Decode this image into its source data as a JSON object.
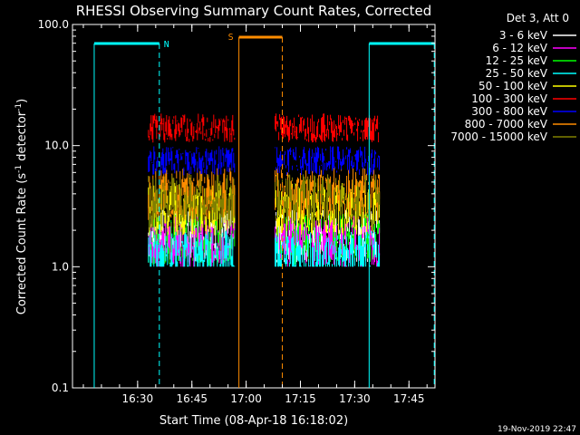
{
  "chart_data": {
    "type": "line",
    "title": "RHESSI Observing Summary Count Rates, Corrected",
    "xlabel": "Start Time (08-Apr-18 16:18:02)",
    "ylabel_main": "Corrected Count Rate (s",
    "ylabel_sup1": "-1",
    "ylabel_mid": " detector",
    "ylabel_sup2": "-1",
    "ylabel_end": ")",
    "yscale": "log",
    "ylim": [
      0.1,
      100
    ],
    "xlim_minutes": [
      16.2,
      17.87
    ],
    "x_ticks": [
      "16:30",
      "16:45",
      "17:00",
      "17:15",
      "17:30",
      "17:45"
    ],
    "y_ticks": [
      "0.1",
      "1.0",
      "10.0",
      "100.0"
    ],
    "y_tick_values": [
      0.1,
      1,
      10,
      100
    ],
    "x_tick_values": [
      16.5,
      16.75,
      17.0,
      17.25,
      17.5,
      17.75
    ],
    "legend_title": "Det 3, Att 0",
    "series": [
      {
        "name": "3 - 6 keV",
        "color": "#ffffff",
        "level": 1.8
      },
      {
        "name": "6 - 12 keV",
        "color": "#ff00ff",
        "level": 1.6
      },
      {
        "name": "12 - 25 keV",
        "color": "#00ff00",
        "level": 1.7
      },
      {
        "name": "25 - 50 keV",
        "color": "#00ffff",
        "level": 1.2
      },
      {
        "name": "50 - 100 keV",
        "color": "#ffff00",
        "level": 3.0
      },
      {
        "name": "100 - 300 keV",
        "color": "#ff0000",
        "level": 14.0
      },
      {
        "name": "300 - 800 keV",
        "color": "#0000ff",
        "level": 7.5
      },
      {
        "name": "800 - 7000 keV",
        "color": "#ff8c00",
        "level": 4.0
      },
      {
        "name": "7000 - 15000 keV",
        "color": "#808000",
        "level": 3.5
      }
    ],
    "data_segments": [
      {
        "start": "16:33",
        "end": "16:57"
      },
      {
        "start": "17:08",
        "end": "17:37"
      }
    ],
    "night_intervals": [
      {
        "start": "16:18",
        "end": "16:36",
        "label": "N"
      },
      {
        "start": "17:34",
        "end": "17:52",
        "label": ""
      }
    ],
    "saa_intervals": [
      {
        "start": "16:58",
        "end": "17:10",
        "label": "S"
      }
    ],
    "footer_date": "19-Nov-2019 22:47"
  }
}
